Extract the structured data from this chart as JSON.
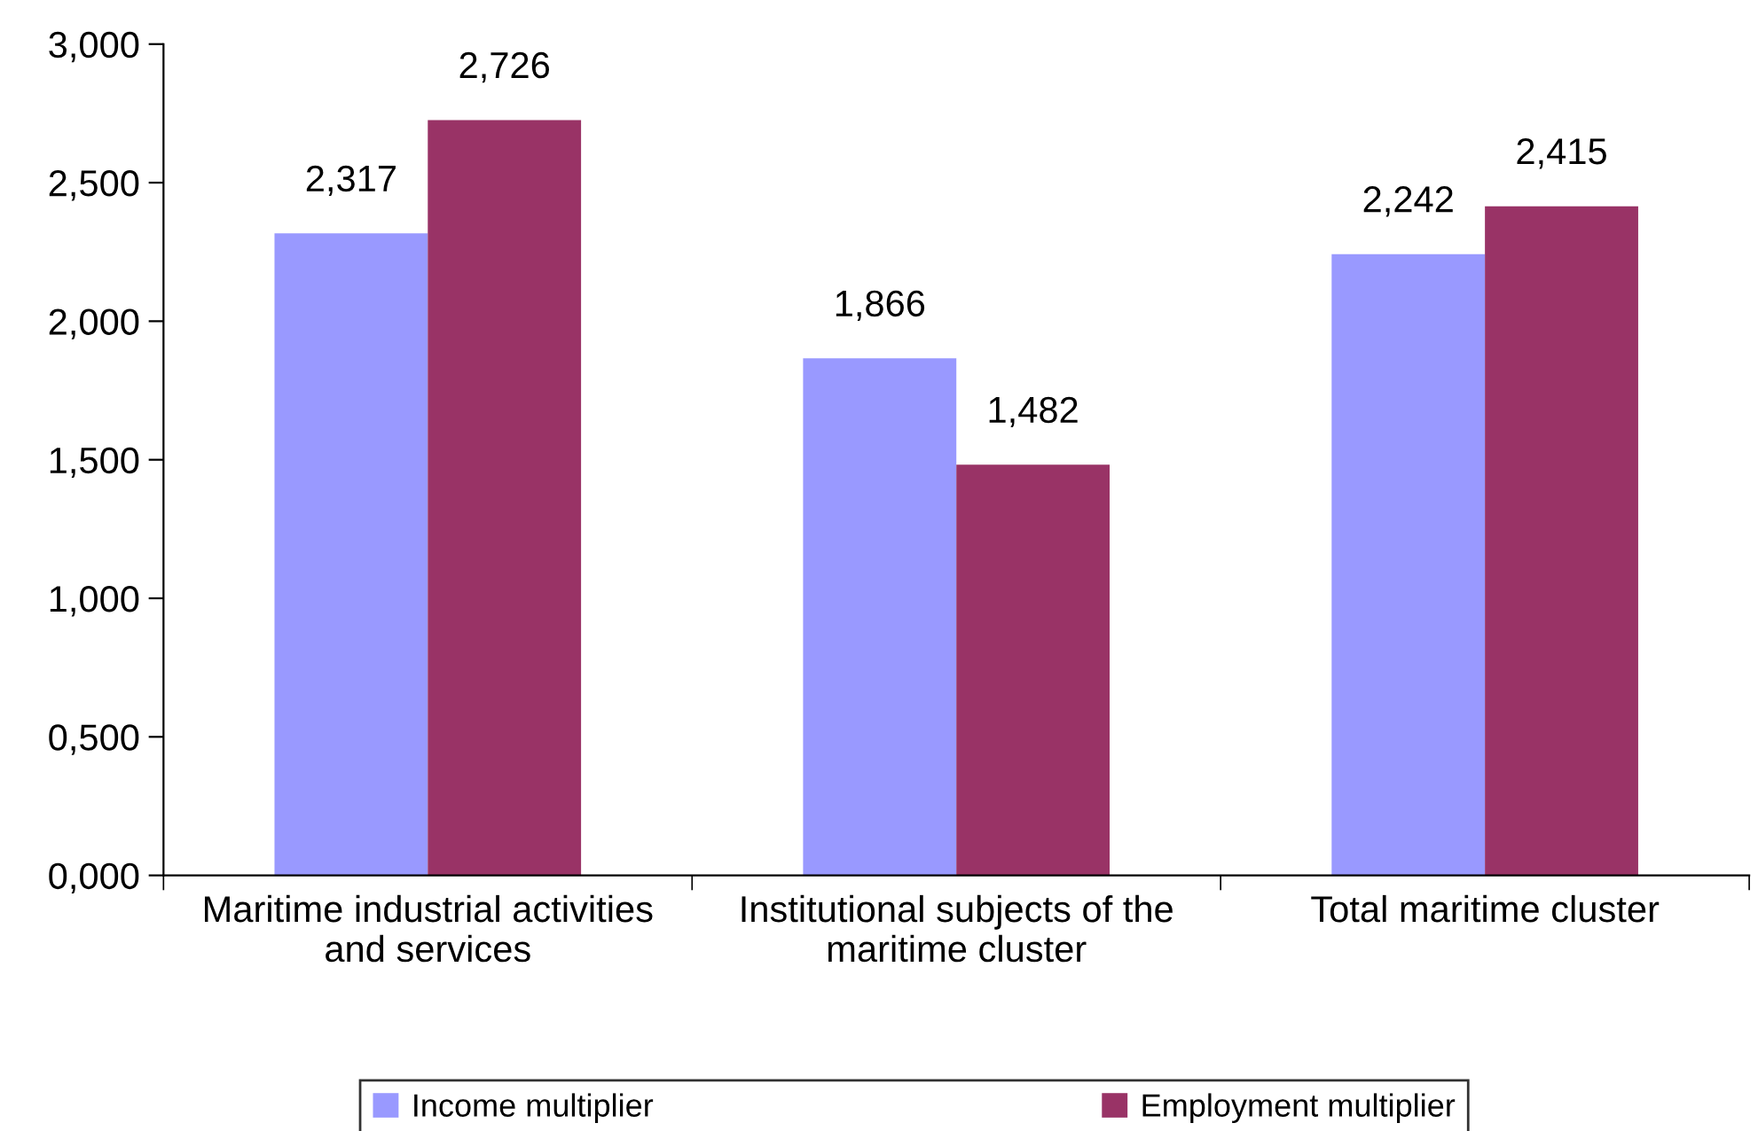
{
  "chart_data": {
    "type": "bar",
    "categories": [
      "Maritime industrial activities\nand services",
      "Institutional subjects of the\nmaritime cluster",
      "Total maritime cluster"
    ],
    "series": [
      {
        "name": "Income multiplier",
        "color": "#9999ff",
        "values": [
          2.317,
          1.866,
          2.242
        ],
        "value_labels": [
          "2,317",
          "1,866",
          "2,242"
        ]
      },
      {
        "name": "Employment multiplier",
        "color": "#993366",
        "values": [
          2.726,
          1.482,
          2.415
        ],
        "value_labels": [
          "2,726",
          "1,482",
          "2,415"
        ]
      }
    ],
    "ylim": [
      0,
      3
    ],
    "yticks": [
      {
        "value": 0,
        "label": "0,000"
      },
      {
        "value": 0.5,
        "label": "0,500"
      },
      {
        "value": 1,
        "label": "1,000"
      },
      {
        "value": 1.5,
        "label": "1,500"
      },
      {
        "value": 2,
        "label": "2,000"
      },
      {
        "value": 2.5,
        "label": "2,500"
      },
      {
        "value": 3,
        "label": "3,000"
      }
    ],
    "grid": false,
    "legend": "bottom"
  }
}
